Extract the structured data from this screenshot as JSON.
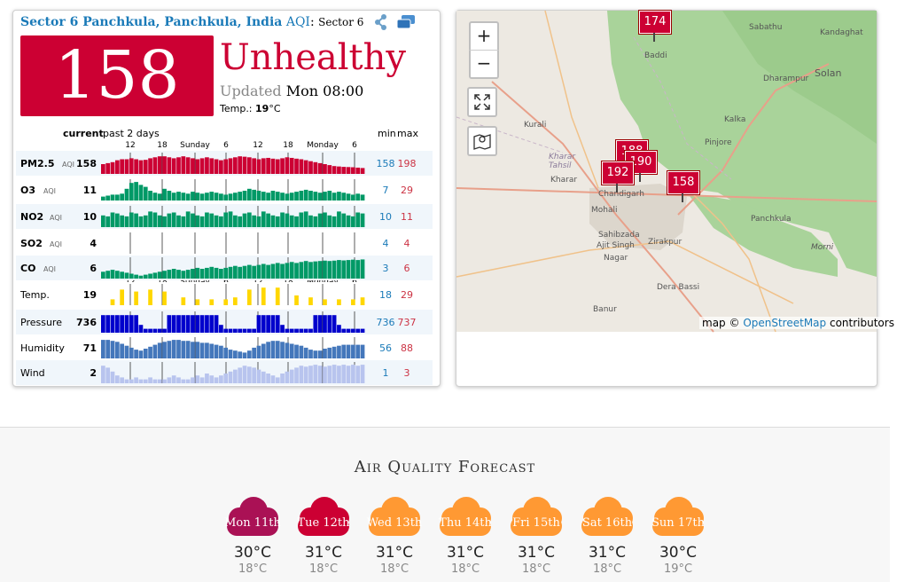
{
  "header": {
    "city": "Sector 6 Panchkula, Panchkula, India",
    "aqi_word": "AQI",
    "station": "Sector 6"
  },
  "aqi": {
    "value": "158",
    "status": "Unhealthy",
    "updated_label": "Updated",
    "updated_time": "Mon 08:00",
    "temp_label": "Temp.:",
    "temp_value": "19",
    "temp_unit": "°C",
    "color": "#cc0033"
  },
  "history": {
    "col_current": "current",
    "col_past": "past 2 days",
    "col_min": "min",
    "col_max": "max",
    "time_labels": [
      "12",
      "18",
      "Sunday",
      "6",
      "12",
      "18",
      "Monday",
      "6"
    ],
    "rows": [
      {
        "label": "PM2.5",
        "unit": "AQI",
        "current": "158",
        "min": "158",
        "max": "198",
        "color": "#cc0033",
        "values": [
          0.5,
          0.55,
          0.6,
          0.7,
          0.75,
          0.75,
          0.8,
          0.75,
          0.7,
          0.72,
          0.8,
          0.85,
          0.9,
          0.9,
          0.85,
          0.8,
          0.85,
          0.9,
          0.85,
          0.8,
          0.75,
          0.8,
          0.85,
          0.8,
          0.75,
          0.7,
          0.75,
          0.8,
          0.85,
          0.9,
          0.88,
          0.85,
          0.8,
          0.75,
          0.8,
          0.82,
          0.78,
          0.75,
          0.8,
          0.85,
          0.82,
          0.78,
          0.75,
          0.7,
          0.65,
          0.6,
          0.55,
          0.5,
          0.45,
          0.4,
          0.38,
          0.36,
          0.35,
          0.34,
          0.32,
          0.3
        ]
      },
      {
        "label": "O3",
        "unit": "AQI",
        "current": "11",
        "min": "7",
        "max": "29",
        "color": "#009966",
        "values": [
          0.2,
          0.25,
          0.3,
          0.3,
          0.35,
          0.6,
          0.9,
          0.95,
          0.8,
          0.7,
          0.5,
          0.4,
          0.35,
          0.6,
          0.5,
          0.4,
          0.45,
          0.4,
          0.35,
          0.45,
          0.4,
          0.35,
          0.4,
          0.45,
          0.4,
          0.35,
          0.3,
          0.35,
          0.4,
          0.45,
          0.5,
          0.6,
          0.55,
          0.5,
          0.45,
          0.4,
          0.5,
          0.45,
          0.4,
          0.35,
          0.4,
          0.45,
          0.5,
          0.55,
          0.5,
          0.45,
          0.4,
          0.45,
          0.5,
          0.4,
          0.45,
          0.4,
          0.35,
          0.3,
          0.35,
          0.3
        ]
      },
      {
        "label": "NO2",
        "unit": "AQI",
        "current": "10",
        "min": "10",
        "max": "11",
        "color": "#009966",
        "values": [
          0.6,
          0.55,
          0.75,
          0.7,
          0.6,
          0.55,
          0.75,
          0.7,
          0.55,
          0.6,
          0.8,
          0.75,
          0.6,
          0.55,
          0.7,
          0.75,
          0.6,
          0.55,
          0.8,
          0.7,
          0.6,
          0.55,
          0.75,
          0.7,
          0.6,
          0.55,
          0.75,
          0.8,
          0.6,
          0.55,
          0.7,
          0.75,
          0.6,
          0.55,
          0.8,
          0.7,
          0.6,
          0.55,
          0.75,
          0.7,
          0.6,
          0.55,
          0.75,
          0.8,
          0.6,
          0.55,
          0.7,
          0.75,
          0.6,
          0.55,
          0.8,
          0.7,
          0.6,
          0.55,
          0.75,
          0.7
        ]
      },
      {
        "label": "SO2",
        "unit": "AQI",
        "current": "4",
        "min": "4",
        "max": "4",
        "color": "#009966",
        "values": []
      },
      {
        "label": "CO",
        "unit": "AQI",
        "current": "6",
        "min": "3",
        "max": "6",
        "color": "#009966",
        "values": [
          0.35,
          0.4,
          0.45,
          0.4,
          0.35,
          0.3,
          0.25,
          0.2,
          0.15,
          0.2,
          0.25,
          0.3,
          0.35,
          0.4,
          0.45,
          0.5,
          0.45,
          0.4,
          0.45,
          0.5,
          0.55,
          0.5,
          0.55,
          0.6,
          0.55,
          0.5,
          0.55,
          0.6,
          0.65,
          0.6,
          0.65,
          0.7,
          0.65,
          0.7,
          0.75,
          0.7,
          0.75,
          0.8,
          0.75,
          0.8,
          0.85,
          0.8,
          0.85,
          0.9,
          0.85,
          0.88,
          0.9,
          0.92,
          0.9,
          0.92,
          0.95,
          0.93,
          0.95,
          0.97,
          0.95,
          0.98
        ]
      },
      {
        "label": "Temp.",
        "unit": "",
        "current": "19",
        "min": "18",
        "max": "29",
        "color": "#ffd700",
        "values": [
          0,
          0,
          0.3,
          0,
          0.8,
          0,
          0,
          0.7,
          0,
          0,
          0.8,
          0,
          0,
          0.7,
          0,
          0,
          0,
          0.4,
          0,
          0,
          0.3,
          0,
          0,
          0.3,
          0,
          0,
          0.3,
          0,
          0.4,
          0,
          0,
          0.8,
          0,
          0,
          0.9,
          0,
          0,
          0.9,
          0,
          0,
          0,
          0.5,
          0,
          0,
          0.4,
          0,
          0,
          0.3,
          0,
          0,
          0.3,
          0,
          0,
          0.3,
          0,
          0.4
        ]
      },
      {
        "label": "Pressure",
        "unit": "",
        "current": "736",
        "min": "736",
        "max": "737",
        "color": "#0000cc",
        "values": [
          0.9,
          0.9,
          0.9,
          0.9,
          0.9,
          0.9,
          0.9,
          0.9,
          0.4,
          0.2,
          0.2,
          0.2,
          0.2,
          0.2,
          0.9,
          0.9,
          0.9,
          0.9,
          0.9,
          0.9,
          0.9,
          0.9,
          0.9,
          0.9,
          0.9,
          0.4,
          0.2,
          0.2,
          0.2,
          0.2,
          0.2,
          0.2,
          0.2,
          0.9,
          0.9,
          0.9,
          0.9,
          0.9,
          0.4,
          0.2,
          0.2,
          0.2,
          0.2,
          0.2,
          0.2,
          0.9,
          0.9,
          0.9,
          0.9,
          0.9,
          0.4,
          0.2,
          0.2,
          0.2,
          0.2,
          0.2
        ]
      },
      {
        "label": "Humidity",
        "unit": "",
        "current": "71",
        "min": "56",
        "max": "88",
        "color": "#4477bb",
        "values": [
          0.95,
          0.95,
          0.9,
          0.85,
          0.75,
          0.65,
          0.55,
          0.45,
          0.4,
          0.5,
          0.6,
          0.7,
          0.8,
          0.85,
          0.9,
          0.95,
          0.95,
          0.9,
          0.9,
          0.85,
          0.85,
          0.8,
          0.8,
          0.75,
          0.7,
          0.65,
          0.55,
          0.45,
          0.4,
          0.35,
          0.3,
          0.4,
          0.55,
          0.65,
          0.75,
          0.85,
          0.9,
          0.9,
          0.85,
          0.8,
          0.75,
          0.7,
          0.65,
          0.55,
          0.45,
          0.4,
          0.4,
          0.5,
          0.55,
          0.6,
          0.65,
          0.7,
          0.7,
          0.7,
          0.7,
          0.7
        ]
      },
      {
        "label": "Wind",
        "unit": "",
        "current": "2",
        "min": "1",
        "max": "3",
        "color": "#b8c4ee",
        "values": [
          0.9,
          0.8,
          0.6,
          0.4,
          0.3,
          0.2,
          0.2,
          0.3,
          0.2,
          0.2,
          0.3,
          0.2,
          0.2,
          0.2,
          0.3,
          0.4,
          0.3,
          0.2,
          0.2,
          0.3,
          0.4,
          0.3,
          0.5,
          0.4,
          0.3,
          0.4,
          0.5,
          0.6,
          0.7,
          0.8,
          0.9,
          0.85,
          0.8,
          0.7,
          0.6,
          0.5,
          0.4,
          0.3,
          0.5,
          0.6,
          0.7,
          0.8,
          0.9,
          0.85,
          0.9,
          0.95,
          0.9,
          0.85,
          0.9,
          0.95,
          0.9,
          0.95,
          0.9,
          0.95,
          0.9,
          0.95
        ]
      }
    ]
  },
  "map": {
    "zoom_in": "+",
    "zoom_out": "−",
    "markers": [
      {
        "value": "174"
      },
      {
        "value": "188"
      },
      {
        "value": "190"
      },
      {
        "value": "192"
      },
      {
        "value": "158"
      }
    ],
    "places": [
      {
        "name": "Sabathu"
      },
      {
        "name": "Kandaghat"
      },
      {
        "name": "Solan"
      },
      {
        "name": "Dharampur"
      },
      {
        "name": "Kalka"
      },
      {
        "name": "Pinjore"
      },
      {
        "name": "Kurali"
      },
      {
        "name": "Kharar"
      },
      {
        "name": "Mohali"
      },
      {
        "name": "Chandigarh"
      },
      {
        "name": "Panchkula"
      },
      {
        "name": "Sahibzada"
      },
      {
        "name": "Ajit Singh"
      },
      {
        "name": "Nagar"
      },
      {
        "name": "Zirakpur"
      },
      {
        "name": "Dera Bassi"
      },
      {
        "name": "Banur"
      },
      {
        "name": "Baddi"
      },
      {
        "name": "Morni"
      },
      {
        "name": "Kharar Tahsil"
      }
    ],
    "attribution_prefix": "map ©",
    "attribution_link": "OpenStreetMap",
    "attribution_suffix": "contributors"
  },
  "forecast": {
    "title": "Air Quality Forecast",
    "days": [
      {
        "label": "Mon 11th",
        "max": "30°C",
        "min": "18°C",
        "color": "#aa1155"
      },
      {
        "label": "Tue 12th",
        "max": "31°C",
        "min": "18°C",
        "color": "#cc0033"
      },
      {
        "label": "Wed 13th",
        "max": "31°C",
        "min": "18°C",
        "color": "#ff9933"
      },
      {
        "label": "Thu 14th",
        "max": "31°C",
        "min": "18°C",
        "color": "#ff9933"
      },
      {
        "label": "Fri 15th",
        "max": "31°C",
        "min": "18°C",
        "color": "#ff9933"
      },
      {
        "label": "Sat 16th",
        "max": "31°C",
        "min": "18°C",
        "color": "#ff9933"
      },
      {
        "label": "Sun 17th",
        "max": "30°C",
        "min": "19°C",
        "color": "#ff9933"
      }
    ]
  }
}
